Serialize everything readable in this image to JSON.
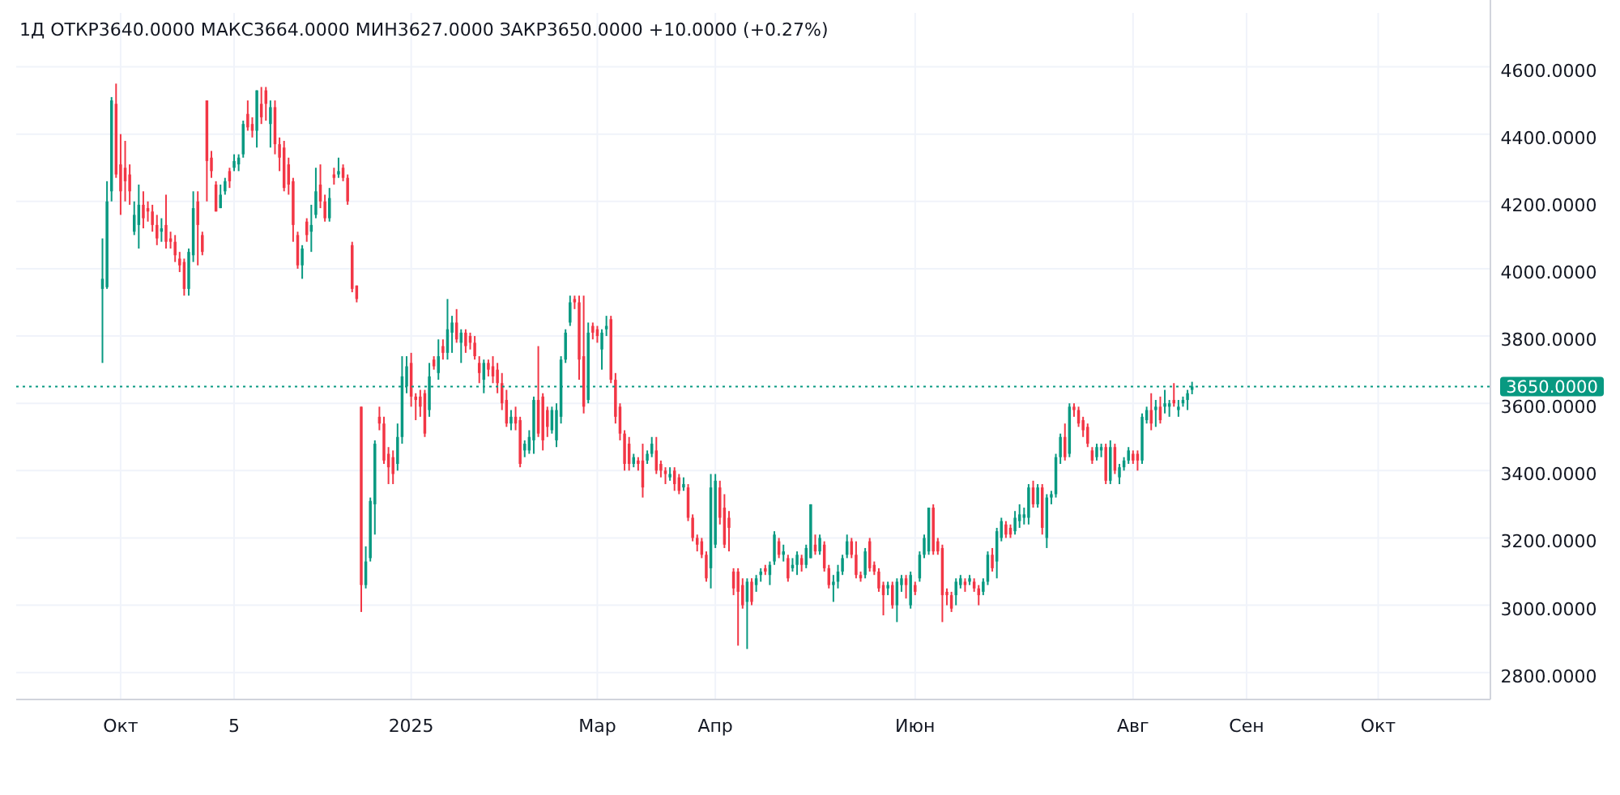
{
  "chart_data": {
    "type": "candlestick",
    "title": "1Д  ОТКР3640.0000  МАКС3664.0000  МИН3627.0000  ЗАКР3650.0000  +10.0000 (+0.27%)",
    "categories": [
      null,
      null,
      null,
      null,
      "Окт",
      null,
      null,
      null,
      null,
      null,
      null,
      null,
      null,
      null,
      null,
      null,
      null,
      null,
      null,
      null,
      null,
      null,
      null,
      null,
      null,
      null,
      null,
      null,
      null,
      "5",
      null,
      null,
      null,
      null,
      null,
      null,
      null,
      null,
      null,
      null,
      null,
      null,
      null,
      null,
      null,
      null,
      null,
      null,
      null,
      null,
      null,
      null,
      null,
      null,
      null,
      null,
      null,
      null,
      null,
      null,
      null,
      null,
      null,
      null,
      null,
      null,
      null,
      null,
      "2025",
      null,
      null,
      null,
      null,
      null,
      null,
      null,
      null,
      null,
      null,
      null,
      null,
      null,
      null,
      null,
      null,
      null,
      null,
      null,
      null,
      null,
      null,
      null,
      null,
      null,
      null,
      null,
      null,
      null,
      null,
      null,
      null,
      null,
      null,
      null,
      null,
      null,
      null,
      null,
      null,
      "Мар",
      null,
      null,
      null,
      null,
      null,
      null,
      null,
      null,
      null,
      null,
      null,
      null,
      null,
      null,
      null,
      null,
      null,
      null,
      null,
      null,
      null,
      null,
      null,
      null,
      null,
      "Апр",
      null,
      null,
      null,
      null,
      null,
      null,
      null,
      null,
      null,
      null,
      null,
      null,
      null,
      null,
      null,
      null,
      null,
      null,
      null,
      null,
      null,
      null,
      null,
      null,
      null,
      null,
      null,
      null,
      null,
      null,
      null,
      null,
      null,
      null,
      null,
      null,
      null,
      null,
      null,
      null,
      null,
      null,
      null,
      "Июн",
      null,
      null,
      null,
      null,
      null,
      null,
      null,
      null,
      null,
      null,
      null,
      null,
      null,
      null,
      null,
      null,
      null,
      null,
      null,
      null,
      null,
      null,
      null,
      null,
      null,
      null,
      null,
      null,
      null,
      null,
      null,
      null,
      null,
      null,
      null,
      null,
      null,
      null,
      null,
      null,
      null,
      null,
      null,
      null,
      null,
      null,
      null,
      "Авг",
      null,
      null,
      null,
      null,
      null,
      null,
      null,
      null,
      null,
      null,
      null,
      null,
      null,
      null,
      null,
      null,
      null,
      null,
      null,
      null,
      null,
      null,
      null,
      null,
      "Сен",
      null,
      null,
      null,
      null,
      null,
      null,
      null,
      null,
      null,
      null,
      null,
      null,
      null,
      null,
      null,
      null,
      null,
      null,
      null,
      null,
      null,
      null,
      null,
      null,
      null,
      null,
      null,
      null,
      "Окт",
      null,
      null,
      null,
      null,
      null,
      null,
      null,
      null,
      null,
      null,
      null,
      null,
      null,
      null,
      null,
      null,
      null,
      null,
      null,
      null,
      null,
      null,
      null,
      null
    ],
    "ohlc": [
      [
        3940,
        4090,
        3720,
        3970
      ],
      [
        3945,
        4260,
        3940,
        4200
      ],
      [
        4230,
        4510,
        4200,
        4500
      ],
      [
        4490,
        4550,
        4270,
        4280
      ],
      [
        4310,
        4400,
        4160,
        4230
      ],
      [
        4300,
        4380,
        4200,
        4260
      ],
      [
        4280,
        4310,
        4190,
        4230
      ],
      [
        4110,
        4200,
        4100,
        4160
      ],
      [
        4130,
        4250,
        4060,
        4190
      ],
      [
        4190,
        4230,
        4120,
        4150
      ],
      [
        4180,
        4200,
        4140,
        4170
      ],
      [
        4170,
        4190,
        4110,
        4130
      ],
      [
        4130,
        4160,
        4070,
        4090
      ],
      [
        4110,
        4150,
        4080,
        4120
      ],
      [
        4130,
        4220,
        4060,
        4080
      ],
      [
        4090,
        4110,
        4060,
        4080
      ],
      [
        4080,
        4100,
        4020,
        4040
      ],
      [
        4030,
        4050,
        3990,
        4010
      ],
      [
        4020,
        4030,
        3920,
        3940
      ],
      [
        3940,
        4060,
        3920,
        4050
      ],
      [
        4040,
        4230,
        4020,
        4180
      ],
      [
        4200,
        4230,
        4010,
        4130
      ],
      [
        4100,
        4110,
        4040,
        4050
      ],
      [
        4500,
        4500,
        4200,
        4320
      ],
      [
        4330,
        4350,
        4270,
        4290
      ],
      [
        4250,
        4260,
        4170,
        4170
      ],
      [
        4180,
        4250,
        4180,
        4220
      ],
      [
        4230,
        4270,
        4220,
        4260
      ],
      [
        4290,
        4300,
        4240,
        4260
      ],
      [
        4300,
        4340,
        4290,
        4320
      ],
      [
        4310,
        4340,
        4290,
        4330
      ],
      [
        4340,
        4440,
        4330,
        4430
      ],
      [
        4460,
        4500,
        4410,
        4420
      ],
      [
        4430,
        4450,
        4390,
        4410
      ],
      [
        4410,
        4530,
        4360,
        4530
      ],
      [
        4490,
        4540,
        4430,
        4450
      ],
      [
        4530,
        4540,
        4440,
        4490
      ],
      [
        4430,
        4500,
        4360,
        4480
      ],
      [
        4480,
        4500,
        4340,
        4370
      ],
      [
        4370,
        4390,
        4290,
        4330
      ],
      [
        4360,
        4380,
        4230,
        4240
      ],
      [
        4310,
        4330,
        4220,
        4250
      ],
      [
        4260,
        4270,
        4080,
        4130
      ],
      [
        4100,
        4110,
        4000,
        4010
      ],
      [
        4010,
        4070,
        3970,
        4060
      ],
      [
        4140,
        4150,
        4080,
        4100
      ],
      [
        4110,
        4190,
        4050,
        4130
      ],
      [
        4160,
        4300,
        4150,
        4230
      ],
      [
        4250,
        4310,
        4180,
        4200
      ],
      [
        4200,
        4220,
        4140,
        4150
      ],
      [
        4150,
        4240,
        4140,
        4210
      ],
      [
        4280,
        4300,
        4250,
        4270
      ],
      [
        4280,
        4330,
        4270,
        4290
      ],
      [
        4300,
        4310,
        4260,
        4270
      ],
      [
        4270,
        4280,
        4190,
        4200
      ],
      [
        4070,
        4080,
        3930,
        3940
      ],
      [
        3950,
        3950,
        3900,
        3910
      ],
      [
        3590,
        3590,
        2980,
        3060
      ],
      [
        3060,
        3175,
        3050,
        3130
      ],
      [
        3140,
        3320,
        3130,
        3310
      ],
      [
        3300,
        3490,
        3210,
        3480
      ],
      [
        3560,
        3590,
        3520,
        3540
      ],
      [
        3540,
        3560,
        3420,
        3430
      ],
      [
        3450,
        3470,
        3360,
        3410
      ],
      [
        3440,
        3460,
        3360,
        3390
      ],
      [
        3420,
        3540,
        3400,
        3500
      ],
      [
        3500,
        3740,
        3480,
        3680
      ],
      [
        3650,
        3740,
        3630,
        3710
      ],
      [
        3720,
        3750,
        3590,
        3620
      ],
      [
        3620,
        3630,
        3550,
        3610
      ],
      [
        3620,
        3640,
        3560,
        3590
      ],
      [
        3630,
        3640,
        3500,
        3510
      ],
      [
        3580,
        3720,
        3560,
        3680
      ],
      [
        3730,
        3740,
        3700,
        3710
      ],
      [
        3690,
        3790,
        3670,
        3740
      ],
      [
        3770,
        3790,
        3730,
        3750
      ],
      [
        3750,
        3910,
        3730,
        3820
      ],
      [
        3810,
        3860,
        3750,
        3840
      ],
      [
        3840,
        3880,
        3780,
        3790
      ],
      [
        3780,
        3820,
        3720,
        3810
      ],
      [
        3810,
        3820,
        3750,
        3770
      ],
      [
        3800,
        3810,
        3760,
        3780
      ],
      [
        3780,
        3800,
        3730,
        3740
      ],
      [
        3720,
        3740,
        3660,
        3690
      ],
      [
        3670,
        3730,
        3630,
        3720
      ],
      [
        3720,
        3730,
        3680,
        3700
      ],
      [
        3710,
        3740,
        3660,
        3680
      ],
      [
        3700,
        3720,
        3630,
        3660
      ],
      [
        3660,
        3690,
        3580,
        3600
      ],
      [
        3610,
        3640,
        3530,
        3540
      ],
      [
        3540,
        3580,
        3520,
        3560
      ],
      [
        3560,
        3590,
        3520,
        3540
      ],
      [
        3550,
        3560,
        3410,
        3420
      ],
      [
        3460,
        3490,
        3440,
        3480
      ],
      [
        3460,
        3520,
        3450,
        3500
      ],
      [
        3490,
        3620,
        3450,
        3610
      ],
      [
        3610,
        3770,
        3500,
        3510
      ],
      [
        3620,
        3630,
        3460,
        3490
      ],
      [
        3580,
        3590,
        3500,
        3530
      ],
      [
        3520,
        3590,
        3510,
        3580
      ],
      [
        3490,
        3600,
        3470,
        3580
      ],
      [
        3560,
        3740,
        3540,
        3730
      ],
      [
        3730,
        3820,
        3720,
        3810
      ],
      [
        3840,
        3920,
        3830,
        3900
      ],
      [
        3910,
        3920,
        3880,
        3900
      ],
      [
        3900,
        3920,
        3670,
        3730
      ],
      [
        3740,
        3920,
        3570,
        3590
      ],
      [
        3610,
        3840,
        3600,
        3810
      ],
      [
        3830,
        3840,
        3790,
        3810
      ],
      [
        3820,
        3830,
        3780,
        3800
      ],
      [
        3760,
        3820,
        3700,
        3810
      ],
      [
        3820,
        3860,
        3800,
        3830
      ],
      [
        3850,
        3860,
        3660,
        3670
      ],
      [
        3670,
        3690,
        3540,
        3560
      ],
      [
        3590,
        3600,
        3490,
        3510
      ],
      [
        3510,
        3520,
        3400,
        3420
      ],
      [
        3480,
        3500,
        3400,
        3420
      ],
      [
        3420,
        3450,
        3410,
        3440
      ],
      [
        3430,
        3440,
        3400,
        3420
      ],
      [
        3430,
        3480,
        3320,
        3350
      ],
      [
        3430,
        3460,
        3420,
        3450
      ],
      [
        3450,
        3500,
        3440,
        3480
      ],
      [
        3460,
        3500,
        3390,
        3400
      ],
      [
        3420,
        3430,
        3380,
        3400
      ],
      [
        3400,
        3410,
        3360,
        3390
      ],
      [
        3380,
        3410,
        3370,
        3390
      ],
      [
        3400,
        3410,
        3340,
        3360
      ],
      [
        3380,
        3390,
        3330,
        3340
      ],
      [
        3350,
        3380,
        3340,
        3360
      ],
      [
        3350,
        3360,
        3250,
        3260
      ],
      [
        3260,
        3270,
        3190,
        3200
      ],
      [
        3200,
        3210,
        3160,
        3180
      ],
      [
        3190,
        3200,
        3140,
        3150
      ],
      [
        3150,
        3160,
        3070,
        3080
      ],
      [
        3110,
        3390,
        3050,
        3350
      ],
      [
        3180,
        3390,
        3170,
        3370
      ],
      [
        3350,
        3370,
        3240,
        3260
      ],
      [
        3290,
        3330,
        3170,
        3180
      ],
      [
        3260,
        3280,
        3160,
        3230
      ],
      [
        3100,
        3110,
        3030,
        3050
      ],
      [
        3100,
        3110,
        2880,
        3040
      ],
      [
        3060,
        3080,
        2990,
        3000
      ],
      [
        3010,
        3080,
        2870,
        3070
      ],
      [
        3070,
        3080,
        3000,
        3010
      ],
      [
        3060,
        3090,
        3040,
        3080
      ],
      [
        3090,
        3110,
        3070,
        3100
      ],
      [
        3110,
        3120,
        3090,
        3100
      ],
      [
        3090,
        3130,
        3060,
        3120
      ],
      [
        3130,
        3220,
        3120,
        3210
      ],
      [
        3190,
        3200,
        3140,
        3150
      ],
      [
        3150,
        3180,
        3130,
        3160
      ],
      [
        3140,
        3150,
        3070,
        3080
      ],
      [
        3110,
        3140,
        3100,
        3120
      ],
      [
        3120,
        3160,
        3090,
        3150
      ],
      [
        3140,
        3150,
        3100,
        3120
      ],
      [
        3120,
        3180,
        3110,
        3170
      ],
      [
        3140,
        3300,
        3140,
        3300
      ],
      [
        3180,
        3210,
        3150,
        3160
      ],
      [
        3160,
        3210,
        3150,
        3200
      ],
      [
        3180,
        3190,
        3100,
        3110
      ],
      [
        3110,
        3120,
        3050,
        3060
      ],
      [
        3060,
        3090,
        3010,
        3070
      ],
      [
        3070,
        3120,
        3050,
        3100
      ],
      [
        3100,
        3150,
        3090,
        3140
      ],
      [
        3150,
        3210,
        3140,
        3190
      ],
      [
        3190,
        3200,
        3140,
        3150
      ],
      [
        3150,
        3190,
        3080,
        3090
      ],
      [
        3090,
        3100,
        3070,
        3080
      ],
      [
        3090,
        3170,
        3080,
        3160
      ],
      [
        3190,
        3200,
        3100,
        3110
      ],
      [
        3120,
        3130,
        3090,
        3100
      ],
      [
        3100,
        3110,
        3040,
        3050
      ],
      [
        3060,
        3070,
        2970,
        3030
      ],
      [
        3050,
        3070,
        3030,
        3060
      ],
      [
        3060,
        3070,
        2990,
        3000
      ],
      [
        3000,
        3080,
        2950,
        3070
      ],
      [
        3060,
        3090,
        3040,
        3080
      ],
      [
        3080,
        3090,
        3020,
        3060
      ],
      [
        3000,
        3100,
        2990,
        3090
      ],
      [
        3060,
        3070,
        3030,
        3040
      ],
      [
        3080,
        3160,
        3070,
        3150
      ],
      [
        3150,
        3210,
        3140,
        3200
      ],
      [
        3160,
        3290,
        3150,
        3290
      ],
      [
        3290,
        3300,
        3150,
        3160
      ],
      [
        3190,
        3200,
        3150,
        3160
      ],
      [
        3170,
        3180,
        2950,
        3030
      ],
      [
        3040,
        3050,
        3000,
        3030
      ],
      [
        3030,
        3040,
        2980,
        2990
      ],
      [
        3030,
        3080,
        3000,
        3070
      ],
      [
        3060,
        3090,
        3050,
        3080
      ],
      [
        3070,
        3080,
        3040,
        3060
      ],
      [
        3070,
        3090,
        3060,
        3080
      ],
      [
        3070,
        3080,
        3040,
        3050
      ],
      [
        3050,
        3060,
        3000,
        3030
      ],
      [
        3040,
        3080,
        3030,
        3070
      ],
      [
        3070,
        3160,
        3060,
        3150
      ],
      [
        3150,
        3170,
        3100,
        3110
      ],
      [
        3130,
        3230,
        3080,
        3220
      ],
      [
        3200,
        3260,
        3190,
        3250
      ],
      [
        3240,
        3250,
        3200,
        3210
      ],
      [
        3230,
        3240,
        3200,
        3210
      ],
      [
        3220,
        3280,
        3210,
        3260
      ],
      [
        3250,
        3300,
        3230,
        3270
      ],
      [
        3260,
        3290,
        3240,
        3270
      ],
      [
        3260,
        3360,
        3240,
        3350
      ],
      [
        3350,
        3370,
        3290,
        3300
      ],
      [
        3300,
        3360,
        3290,
        3350
      ],
      [
        3350,
        3360,
        3210,
        3230
      ],
      [
        3200,
        3330,
        3170,
        3320
      ],
      [
        3320,
        3340,
        3300,
        3330
      ],
      [
        3330,
        3450,
        3320,
        3440
      ],
      [
        3440,
        3510,
        3420,
        3500
      ],
      [
        3500,
        3540,
        3430,
        3440
      ],
      [
        3450,
        3600,
        3440,
        3590
      ],
      [
        3590,
        3600,
        3560,
        3580
      ],
      [
        3580,
        3590,
        3530,
        3540
      ],
      [
        3550,
        3560,
        3500,
        3520
      ],
      [
        3530,
        3540,
        3470,
        3480
      ],
      [
        3460,
        3470,
        3420,
        3430
      ],
      [
        3440,
        3480,
        3430,
        3470
      ],
      [
        3460,
        3480,
        3440,
        3470
      ],
      [
        3470,
        3480,
        3360,
        3370
      ],
      [
        3370,
        3490,
        3360,
        3470
      ],
      [
        3470,
        3480,
        3390,
        3400
      ],
      [
        3380,
        3420,
        3360,
        3410
      ],
      [
        3410,
        3440,
        3400,
        3430
      ],
      [
        3430,
        3470,
        3420,
        3460
      ],
      [
        3450,
        3460,
        3420,
        3430
      ],
      [
        3450,
        3460,
        3400,
        3430
      ],
      [
        3430,
        3570,
        3420,
        3560
      ],
      [
        3550,
        3590,
        3540,
        3580
      ],
      [
        3580,
        3630,
        3520,
        3540
      ],
      [
        3580,
        3610,
        3530,
        3590
      ],
      [
        3590,
        3620,
        3540,
        3550
      ],
      [
        3590,
        3640,
        3570,
        3600
      ],
      [
        3590,
        3610,
        3560,
        3600
      ],
      [
        3610,
        3660,
        3590,
        3600
      ],
      [
        3580,
        3610,
        3560,
        3590
      ],
      [
        3600,
        3620,
        3590,
        3610
      ],
      [
        3610,
        3640,
        3580,
        3630
      ],
      [
        3640,
        3664,
        3627,
        3650
      ],
      null,
      null,
      null,
      null,
      null,
      null,
      null,
      null,
      null,
      null,
      null,
      null,
      null,
      null,
      null,
      null,
      null,
      null,
      null,
      null,
      null,
      null,
      null,
      null,
      null,
      null,
      null,
      null,
      null,
      null,
      null,
      null,
      null,
      null,
      null,
      null,
      null,
      null,
      null,
      null,
      null,
      null,
      null,
      null,
      null,
      null,
      null,
      null,
      null,
      null,
      null,
      null,
      null,
      null,
      null,
      null,
      null,
      null,
      null,
      null,
      null,
      null,
      null,
      null,
      null
    ],
    "ylim": [
      2720,
      4760
    ],
    "yticks": [
      {
        "value": 2800,
        "label": "2800.0000"
      },
      {
        "value": 3000,
        "label": "3000.0000"
      },
      {
        "value": 3200,
        "label": "3200.0000"
      },
      {
        "value": 3400,
        "label": "3400.0000"
      },
      {
        "value": 3600,
        "label": "3600.0000"
      },
      {
        "value": 3800,
        "label": "3800.0000"
      },
      {
        "value": 4000,
        "label": "4000.0000"
      },
      {
        "value": 4200,
        "label": "4200.0000"
      },
      {
        "value": 4400,
        "label": "4400.0000"
      },
      {
        "value": 4600,
        "label": "4600.0000"
      }
    ],
    "grid": true,
    "ref_lines": [
      {
        "axis": "y",
        "value": 3650,
        "label": "3650.0000",
        "color": "#089981",
        "line_style": "dotted"
      }
    ]
  }
}
